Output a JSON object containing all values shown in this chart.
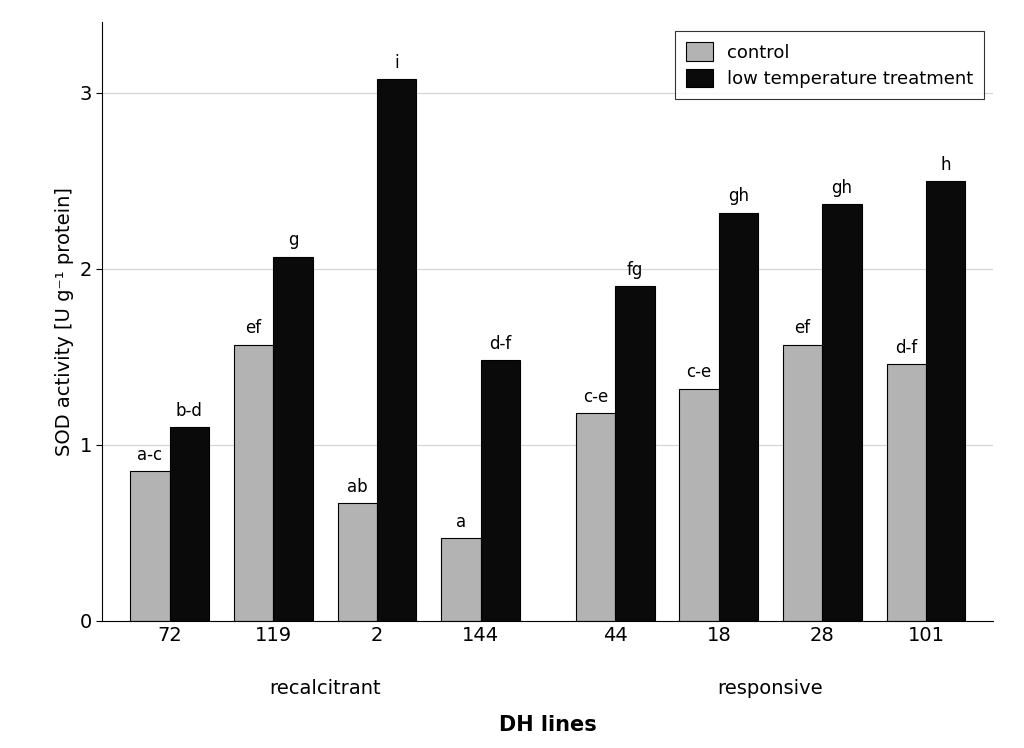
{
  "groups": [
    "72",
    "119",
    "2",
    "144",
    "44",
    "18",
    "28",
    "101"
  ],
  "control_values": [
    0.85,
    1.57,
    0.67,
    0.47,
    1.18,
    1.32,
    1.57,
    1.46
  ],
  "treatment_values": [
    1.1,
    2.07,
    3.08,
    1.48,
    1.9,
    2.32,
    2.37,
    2.5
  ],
  "control_labels": [
    "a-c",
    "ef",
    "ab",
    "a",
    "c-e",
    "c-e",
    "ef",
    "d-f"
  ],
  "treatment_labels": [
    "b-d",
    "g",
    "i",
    "d-f",
    "fg",
    "gh",
    "gh",
    "h"
  ],
  "control_color": "#b3b3b3",
  "treatment_color": "#0a0a0a",
  "ylabel": "SOD activity [U g⁻¹ protein]",
  "xlabel": "DH lines",
  "ylim": [
    0,
    3.4
  ],
  "yticks": [
    0,
    1,
    2,
    3
  ],
  "legend_control": "control",
  "legend_treatment": "low temperature treatment",
  "recalcitrant_label": "recalcitrant",
  "responsive_label": "responsive",
  "bar_width": 0.38,
  "label_fontsize": 14,
  "tick_fontsize": 14,
  "annot_fontsize": 12,
  "legend_fontsize": 13
}
